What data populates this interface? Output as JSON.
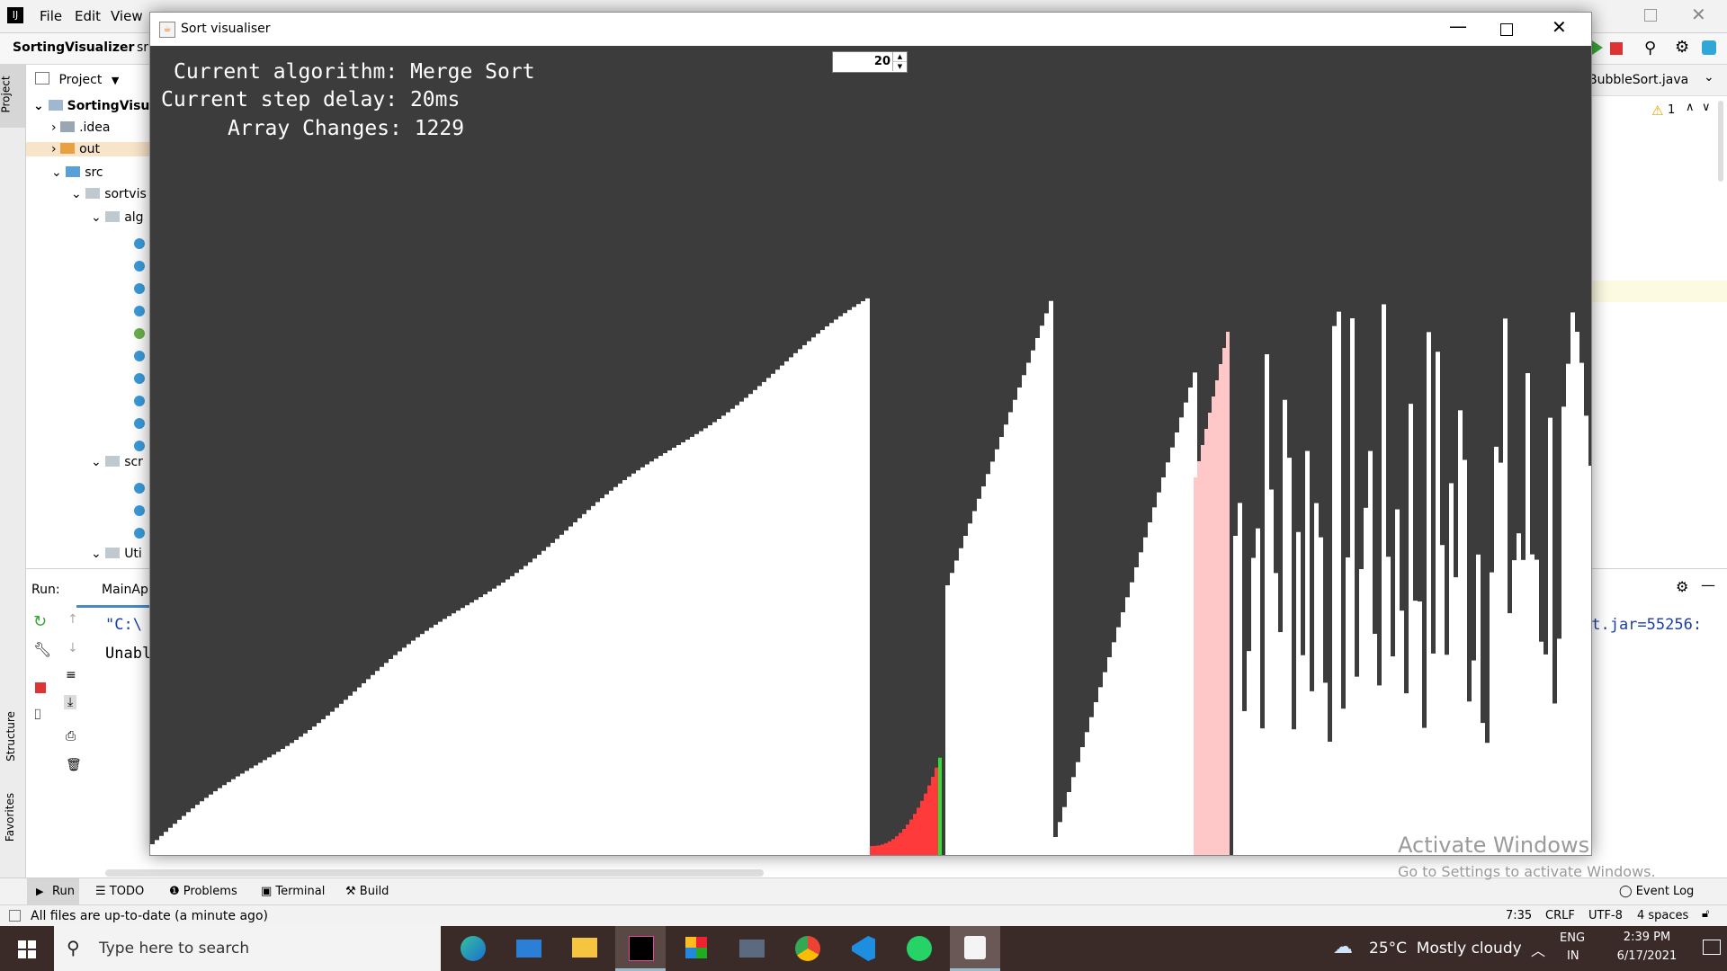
{
  "ide": {
    "menu": [
      "File",
      "Edit",
      "View"
    ],
    "project_name": "SortingVisualizer",
    "breadcrumb_tail": "sr",
    "project_tab": "Project",
    "editor_tab": "BubbleSort.java",
    "warnings_count": "1",
    "tree": [
      {
        "label": "SortingVisua",
        "indent": 0,
        "kind": "project"
      },
      {
        "label": ".idea",
        "indent": 1,
        "kind": "folder"
      },
      {
        "label": "out",
        "indent": 1,
        "kind": "folder-orange"
      },
      {
        "label": "src",
        "indent": 1,
        "kind": "folder-blue"
      },
      {
        "label": "sortvis",
        "indent": 2,
        "kind": "package"
      },
      {
        "label": "alg",
        "indent": 3,
        "kind": "package"
      },
      {
        "label": "scr",
        "indent": 3,
        "kind": "package"
      },
      {
        "label": "Uti",
        "indent": 3,
        "kind": "package"
      }
    ],
    "run_label": "Run:",
    "run_tab": "MainApp",
    "console_lines": [
      "\"C:\\",
      "Unabl"
    ],
    "console_right": "rt.jar=55256:",
    "bottom_tabs": [
      "Run",
      "TODO",
      "Problems",
      "Terminal",
      "Build"
    ],
    "event_log": "Event Log",
    "side_labels": [
      "Project",
      "Structure",
      "Favorites"
    ],
    "status_message": "All files are up-to-date (a minute ago)",
    "status_right": [
      "7:35",
      "CRLF",
      "UTF-8",
      "4 spaces"
    ]
  },
  "sort_window": {
    "title": "Sort visualiser",
    "spinner_value": "20",
    "line_algorithm": "Current algorithm: Merge Sort",
    "line_delay": "Current step delay: 20ms",
    "line_changes": "Array Changes: 1229"
  },
  "watermark": {
    "title": "Activate Windows",
    "subtitle": "Go to Settings to activate Windows."
  },
  "taskbar": {
    "search_placeholder": "Type here to search",
    "weather": "25°C  Mostly cloudy",
    "lang_top": "ENG",
    "lang_bottom": "IN",
    "time": "2:39 PM",
    "date": "6/17/2021",
    "apps": [
      "edge-icon",
      "mail-icon",
      "file-explorer-icon",
      "intellij-icon",
      "office-icon",
      "tv-icon",
      "chrome-icon",
      "vscode-icon",
      "whatsapp-icon",
      "java-icon"
    ]
  },
  "colors": {
    "canvas_bg": "#3c3c3c",
    "bar": "#ffffff",
    "highlight_red": "#ff3a3a",
    "highlight_green": "#33dd33",
    "highlight_pink": "#ffc8c8"
  }
}
